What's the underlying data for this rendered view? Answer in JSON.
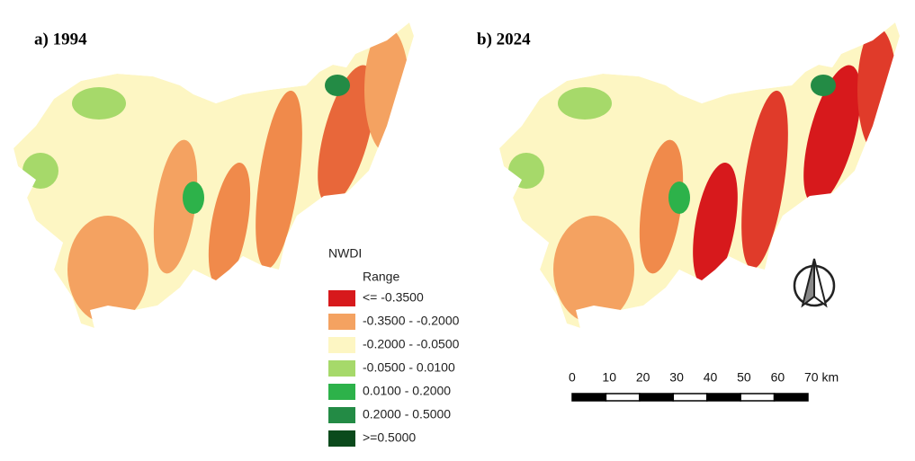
{
  "panels": [
    {
      "title": "a) 1994"
    },
    {
      "title": "b) 2024"
    }
  ],
  "legend": {
    "title": "NWDI",
    "subtitle": "Range",
    "items": [
      {
        "label": "<= -0.3500",
        "color": "#d7191c"
      },
      {
        "label": "-0.3500 - -0.2000",
        "color": "#f4a261"
      },
      {
        "label": "-0.2000 - -0.0500",
        "color": "#fdf6c3"
      },
      {
        "label": "-0.0500 - 0.0100",
        "color": "#a6d96a"
      },
      {
        "label": "0.0100 - 0.2000",
        "color": "#2db24a"
      },
      {
        "label": "0.2000 - 0.5000",
        "color": "#238b45"
      },
      {
        "label": ">=0.5000",
        "color": "#0b4a1c"
      }
    ]
  },
  "scale_bar": {
    "labels": [
      "0",
      "10",
      "20",
      "30",
      "40",
      "50",
      "60",
      "70 km"
    ]
  }
}
